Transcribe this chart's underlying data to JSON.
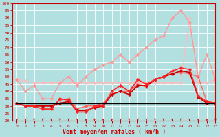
{
  "x": [
    0,
    1,
    2,
    3,
    4,
    5,
    6,
    7,
    8,
    9,
    10,
    11,
    12,
    13,
    14,
    15,
    16,
    17,
    18,
    19,
    20,
    21,
    22,
    23
  ],
  "series": [
    {
      "color": "#ffbbbb",
      "lw": 1.0,
      "marker": "D",
      "ms": 1.8,
      "y": [
        48,
        47,
        46,
        46,
        46,
        46,
        46,
        46,
        46,
        46,
        46,
        46,
        46,
        46,
        46,
        46,
        46,
        46,
        46,
        46,
        90,
        46,
        46,
        48
      ]
    },
    {
      "color": "#ff9999",
      "lw": 1.0,
      "marker": "D",
      "ms": 1.8,
      "y": [
        48,
        40,
        44,
        35,
        35,
        46,
        50,
        44,
        50,
        55,
        58,
        60,
        65,
        60,
        65,
        70,
        75,
        78,
        90,
        95,
        87,
        50,
        65,
        48
      ]
    },
    {
      "color": "#ff6666",
      "lw": 1.0,
      "marker": "D",
      "ms": 1.8,
      "y": [
        32,
        30,
        30,
        30,
        30,
        34,
        35,
        28,
        30,
        30,
        32,
        38,
        40,
        40,
        45,
        43,
        48,
        50,
        52,
        53,
        52,
        50,
        33,
        32
      ]
    },
    {
      "color": "#cc0000",
      "lw": 1.2,
      "marker": "D",
      "ms": 1.8,
      "y": [
        32,
        30,
        30,
        30,
        30,
        32,
        33,
        27,
        27,
        29,
        30,
        38,
        40,
        38,
        44,
        44,
        48,
        50,
        52,
        54,
        53,
        36,
        32,
        32
      ]
    },
    {
      "color": "#ff2222",
      "lw": 1.2,
      "marker": "D",
      "ms": 1.8,
      "y": [
        32,
        30,
        30,
        28,
        28,
        35,
        34,
        26,
        26,
        30,
        30,
        40,
        44,
        40,
        48,
        45,
        48,
        50,
        54,
        56,
        55,
        37,
        33,
        32
      ]
    },
    {
      "color": "#880000",
      "lw": 1.2,
      "marker": null,
      "ms": 0,
      "y": [
        32,
        32,
        32,
        32,
        32,
        32,
        32,
        32,
        32,
        32,
        32,
        32,
        32,
        32,
        32,
        32,
        32,
        32,
        32,
        32,
        32,
        32,
        32,
        32
      ]
    },
    {
      "color": "#000000",
      "lw": 1.0,
      "marker": null,
      "ms": 0,
      "y": [
        32,
        32,
        32,
        32,
        32,
        32,
        32,
        32,
        32,
        32,
        32,
        32,
        32,
        32,
        32,
        32,
        32,
        32,
        32,
        32,
        32,
        32,
        32,
        32
      ]
    }
  ],
  "xlabel": "Vent moyen/en rafales ( km/h )",
  "xlim": [
    -0.5,
    23
  ],
  "ylim": [
    20,
    100
  ],
  "yticks": [
    20,
    25,
    30,
    35,
    40,
    45,
    50,
    55,
    60,
    65,
    70,
    75,
    80,
    85,
    90,
    95,
    100
  ],
  "xticks": [
    0,
    1,
    2,
    3,
    4,
    5,
    6,
    7,
    8,
    9,
    10,
    11,
    12,
    13,
    14,
    15,
    16,
    17,
    18,
    19,
    20,
    21,
    22,
    23
  ],
  "bg_color": "#b2dfdf",
  "grid_color": "#ffffff",
  "tick_color": "#cc0000",
  "label_color": "#cc0000"
}
